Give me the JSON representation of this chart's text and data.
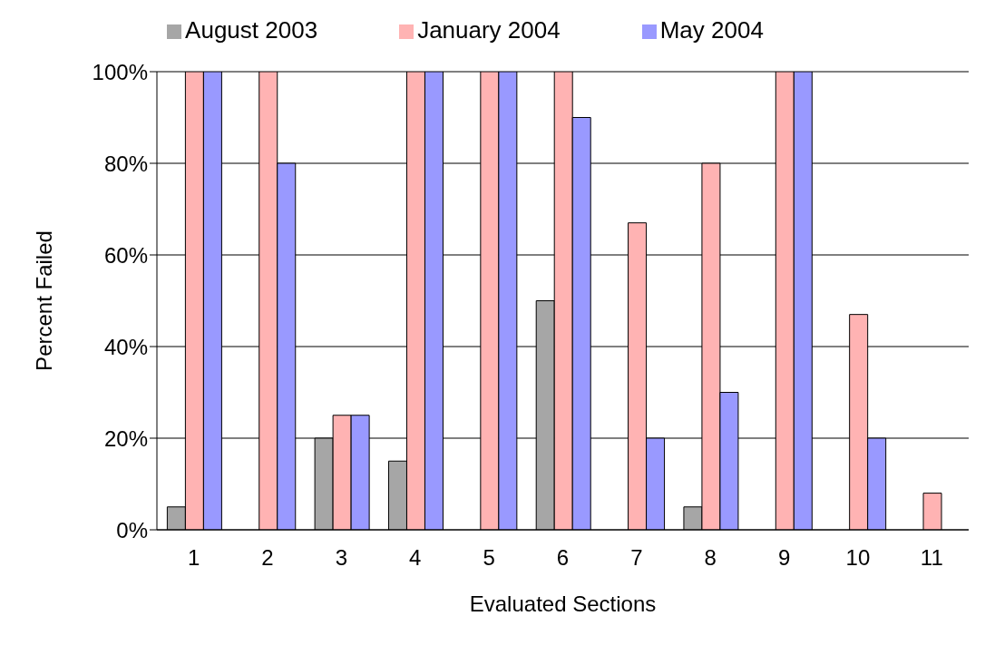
{
  "chart_data": {
    "type": "bar",
    "xlabel": "Evaluated Sections",
    "ylabel": "Percent Failed",
    "categories": [
      "1",
      "2",
      "3",
      "4",
      "5",
      "6",
      "7",
      "8",
      "9",
      "10",
      "11"
    ],
    "series": [
      {
        "name": "August 2003",
        "color": "#a6a6a6",
        "values": [
          5,
          0,
          20,
          15,
          0,
          50,
          0,
          5,
          0,
          0,
          0
        ]
      },
      {
        "name": "January 2004",
        "color": "#ffb3b3",
        "values": [
          100,
          100,
          25,
          100,
          100,
          100,
          67,
          80,
          100,
          47,
          8
        ]
      },
      {
        "name": "May 2004",
        "color": "#9999ff",
        "values": [
          100,
          80,
          25,
          100,
          100,
          90,
          20,
          30,
          100,
          20,
          0
        ]
      }
    ],
    "ylim": [
      0,
      100
    ],
    "yticks": [
      {
        "value": 0,
        "label": "0%"
      },
      {
        "value": 20,
        "label": "20%"
      },
      {
        "value": 40,
        "label": "40%"
      },
      {
        "value": 60,
        "label": "60%"
      },
      {
        "value": 80,
        "label": "80%"
      },
      {
        "value": 100,
        "label": "100%"
      }
    ],
    "grid": "y",
    "legend": "top"
  }
}
